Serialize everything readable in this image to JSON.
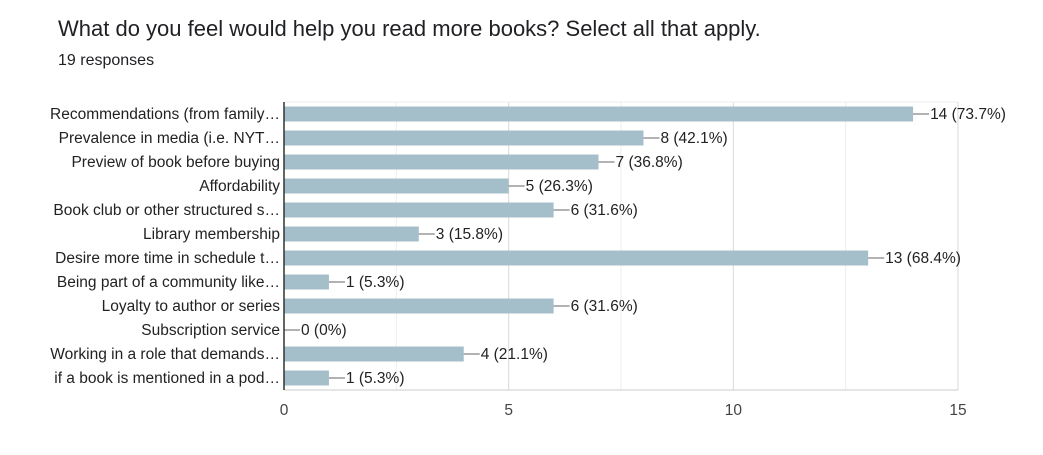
{
  "question": {
    "title": "What do you feel would help you read more books? Select all that apply.",
    "responses": "19 responses"
  },
  "chart_data": {
    "type": "bar",
    "orientation": "horizontal",
    "categories": [
      "Recommendations (from family…",
      "Prevalence in media (i.e. NYT…",
      "Preview of book before buying",
      "Affordability",
      "Book club or other structured s…",
      "Library membership",
      "Desire more time in schedule t…",
      "Being part of a community like…",
      "Loyalty to author or series",
      "Subscription service",
      "Working in a role that demands…",
      "if a book is mentioned in a pod…"
    ],
    "values": [
      14,
      8,
      7,
      5,
      6,
      3,
      13,
      1,
      6,
      0,
      4,
      1
    ],
    "value_labels": [
      "14 (73.7%)",
      "8 (42.1%)",
      "7 (36.8%)",
      "5 (26.3%)",
      "6 (31.6%)",
      "3 (15.8%)",
      "13 (68.4%)",
      "1 (5.3%)",
      "6 (31.6%)",
      "0 (0%)",
      "4 (21.1%)",
      "1 (5.3%)"
    ],
    "xlim": [
      0,
      15
    ],
    "xticks": [
      0,
      5,
      10,
      15
    ],
    "xtick_labels": [
      "0",
      "5",
      "10",
      "15"
    ],
    "grid": true,
    "bar_color": "#a5bfca"
  }
}
